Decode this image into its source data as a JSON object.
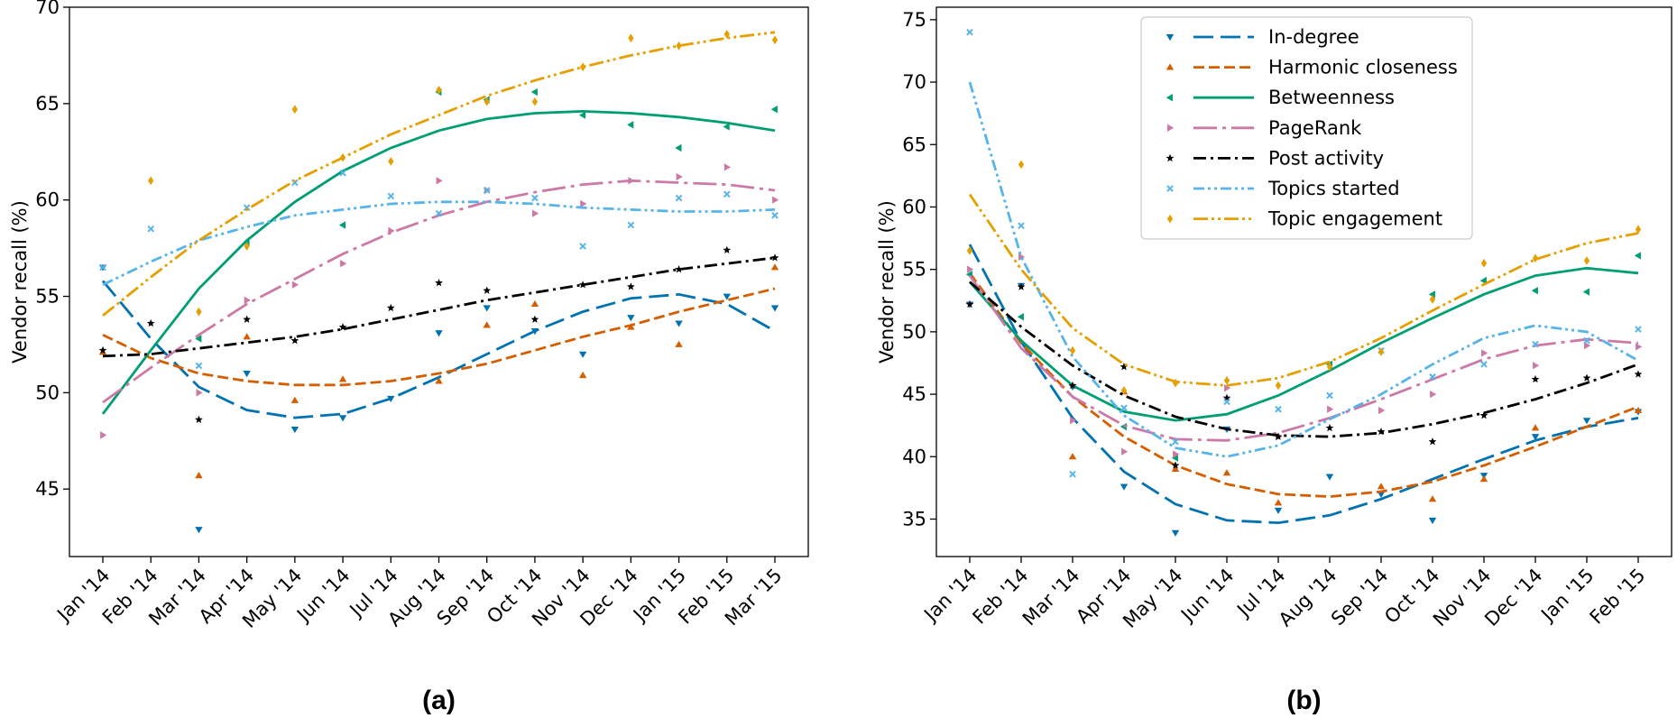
{
  "chart_data": [
    {
      "type": "line",
      "panel_label": "(a)",
      "ylabel": "Vendor recall (%)",
      "xlabel": "",
      "ylim": [
        41.5,
        70
      ],
      "yticks": [
        45,
        50,
        55,
        60,
        65,
        70
      ],
      "categories": [
        "Jan '14",
        "Feb '14",
        "Mar '14",
        "Apr '14",
        "May '14",
        "Jun '14",
        "Jul '14",
        "Aug '14",
        "Sep '14",
        "Oct '14",
        "Nov '14",
        "Dec '14",
        "Jan '15",
        "Feb '15",
        "Mar '15"
      ],
      "grid": false,
      "legend": "none",
      "series": [
        {
          "name": "In-degree",
          "color": "#0072b2",
          "marker": "triangle-down",
          "dash": "dashed-long",
          "points": [
            56.5,
            null,
            42.9,
            51.0,
            48.1,
            48.7,
            49.7,
            53.1,
            54.4,
            53.2,
            52.0,
            53.9,
            53.6,
            55.0,
            54.4
          ],
          "trend": [
            55.8,
            52.8,
            50.3,
            49.1,
            48.7,
            48.9,
            49.7,
            50.8,
            52.0,
            53.2,
            54.2,
            54.9,
            55.1,
            54.6,
            53.2
          ]
        },
        {
          "name": "Harmonic closeness",
          "color": "#d55e00",
          "marker": "triangle-up",
          "dash": "dashed",
          "points": [
            52.1,
            null,
            45.7,
            52.9,
            49.6,
            50.7,
            null,
            50.6,
            53.5,
            54.6,
            50.9,
            53.4,
            52.5,
            null,
            56.5
          ],
          "trend": [
            53.0,
            51.8,
            51.0,
            50.6,
            50.4,
            50.4,
            50.6,
            51.0,
            51.5,
            52.2,
            52.9,
            53.5,
            54.2,
            54.8,
            55.4
          ]
        },
        {
          "name": "Betweenness",
          "color": "#009e73",
          "marker": "triangle-left",
          "dash": "solid",
          "points": [
            null,
            null,
            52.8,
            57.8,
            null,
            58.7,
            null,
            65.6,
            65.2,
            65.6,
            64.4,
            63.9,
            62.7,
            63.8,
            64.7
          ],
          "trend": [
            48.9,
            52.2,
            55.4,
            57.9,
            59.9,
            61.5,
            62.7,
            63.6,
            64.2,
            64.5,
            64.6,
            64.5,
            64.3,
            64.0,
            63.6
          ]
        },
        {
          "name": "PageRank",
          "color": "#cc79a7",
          "marker": "triangle-right",
          "dash": "dash-dot-long",
          "points": [
            47.8,
            null,
            50.0,
            54.8,
            55.6,
            56.7,
            58.4,
            61.0,
            60.5,
            59.3,
            59.8,
            61.0,
            61.2,
            61.7,
            60.0
          ],
          "trend": [
            49.5,
            51.3,
            53.0,
            54.6,
            55.9,
            57.2,
            58.3,
            59.2,
            59.9,
            60.4,
            60.8,
            61.0,
            60.9,
            60.8,
            60.5
          ]
        },
        {
          "name": "Post activity",
          "color": "#000000",
          "marker": "star",
          "dash": "dash-dot",
          "points": [
            52.2,
            53.6,
            48.6,
            53.8,
            52.7,
            53.4,
            54.4,
            55.7,
            55.3,
            53.8,
            55.6,
            55.5,
            56.4,
            57.4,
            57.0
          ],
          "trend": [
            51.9,
            52.0,
            52.3,
            52.6,
            52.9,
            53.3,
            53.8,
            54.3,
            54.8,
            55.2,
            55.6,
            56.0,
            56.4,
            56.7,
            57.0
          ]
        },
        {
          "name": "Topics started",
          "color": "#56b4e9",
          "marker": "x-small",
          "dash": "dash-dot-dot",
          "points": [
            56.5,
            58.5,
            51.4,
            59.6,
            60.9,
            61.4,
            60.2,
            59.3,
            60.5,
            60.1,
            57.6,
            58.7,
            60.1,
            60.3,
            59.2
          ],
          "trend": [
            55.6,
            56.8,
            57.9,
            58.6,
            59.2,
            59.5,
            59.8,
            59.9,
            59.9,
            59.8,
            59.6,
            59.5,
            59.4,
            59.4,
            59.5
          ]
        },
        {
          "name": "Topic engagement",
          "color": "#e69f00",
          "marker": "diamond",
          "dash": "dash-dot-dot-long",
          "points": [
            null,
            61.0,
            54.2,
            57.6,
            64.7,
            62.2,
            62.0,
            65.7,
            65.1,
            65.1,
            66.9,
            68.4,
            68.0,
            68.6,
            68.3
          ],
          "trend": [
            54.0,
            56.0,
            57.9,
            59.5,
            61.0,
            62.2,
            63.4,
            64.4,
            65.4,
            66.2,
            66.9,
            67.5,
            68.0,
            68.4,
            68.7
          ]
        }
      ]
    },
    {
      "type": "line",
      "panel_label": "(b)",
      "ylabel": "Vendor recall (%)",
      "xlabel": "",
      "ylim": [
        32,
        76
      ],
      "yticks": [
        35,
        40,
        45,
        50,
        55,
        60,
        65,
        70,
        75
      ],
      "categories": [
        "Jan '14",
        "Feb '14",
        "Mar '14",
        "Apr '14",
        "May '14",
        "Jun '14",
        "Jul '14",
        "Aug '14",
        "Sep '14",
        "Oct '14",
        "Nov '14",
        "Dec '14",
        "Jan '15",
        "Feb '15"
      ],
      "grid": false,
      "legend": "top-center",
      "series": [
        {
          "name": "In-degree",
          "color": "#0072b2",
          "marker": "triangle-down",
          "dash": "dashed-long",
          "points": [
            52.2,
            53.7,
            45.6,
            37.6,
            33.9,
            42.2,
            35.7,
            38.4,
            37.0,
            34.9,
            38.5,
            41.6,
            42.9,
            43.6
          ],
          "trend": [
            57.0,
            49.2,
            43.1,
            38.8,
            36.2,
            34.9,
            34.7,
            35.3,
            36.6,
            38.2,
            39.8,
            41.3,
            42.4,
            43.1
          ]
        },
        {
          "name": "Harmonic closeness",
          "color": "#d55e00",
          "marker": "triangle-up",
          "dash": "dashed",
          "points": [
            null,
            null,
            40.0,
            45.2,
            39.0,
            38.7,
            36.3,
            null,
            37.6,
            36.6,
            38.2,
            42.3,
            null,
            43.7
          ],
          "trend": [
            54.7,
            49.1,
            44.8,
            41.6,
            39.3,
            37.8,
            37.0,
            36.8,
            37.2,
            38.0,
            39.3,
            40.8,
            42.4,
            44.0
          ]
        },
        {
          "name": "Betweenness",
          "color": "#009e73",
          "marker": "triangle-left",
          "dash": "solid",
          "points": [
            54.6,
            51.2,
            null,
            42.4,
            39.9,
            null,
            null,
            47.4,
            null,
            53.0,
            54.1,
            53.3,
            53.2,
            56.1
          ],
          "trend": [
            54.0,
            49.3,
            45.7,
            43.6,
            42.9,
            43.4,
            44.9,
            46.9,
            49.1,
            51.1,
            53.0,
            54.5,
            55.1,
            54.7
          ]
        },
        {
          "name": "PageRank",
          "color": "#cc79a7",
          "marker": "triangle-right",
          "dash": "dash-dot-long",
          "points": [
            55.0,
            56.0,
            42.9,
            40.4,
            40.2,
            45.5,
            41.6,
            43.8,
            43.7,
            45.0,
            48.3,
            47.3,
            48.9,
            48.8
          ],
          "trend": [
            54.5,
            48.7,
            44.8,
            42.5,
            41.4,
            41.3,
            41.9,
            43.1,
            44.6,
            46.2,
            47.8,
            48.9,
            49.4,
            49.1
          ]
        },
        {
          "name": "Post activity",
          "color": "#000000",
          "marker": "star",
          "dash": "dash-dot",
          "points": [
            52.2,
            53.6,
            45.7,
            47.2,
            39.3,
            44.7,
            41.6,
            42.3,
            42.0,
            41.2,
            43.3,
            46.2,
            46.3,
            46.6
          ],
          "trend": [
            54.0,
            50.4,
            47.3,
            44.9,
            43.2,
            42.2,
            41.7,
            41.6,
            41.9,
            42.6,
            43.5,
            44.6,
            45.9,
            47.4
          ]
        },
        {
          "name": "Topics started",
          "color": "#56b4e9",
          "marker": "x-small",
          "dash": "dash-dot-dot",
          "points": [
            74.0,
            58.5,
            38.6,
            43.9,
            41.2,
            44.4,
            43.8,
            44.9,
            48.5,
            46.4,
            47.4,
            49.0,
            49.3,
            50.2
          ],
          "trend": [
            70.0,
            56.0,
            48.0,
            43.3,
            40.7,
            40.0,
            40.9,
            43.0,
            45.0,
            47.4,
            49.5,
            50.5,
            50.0,
            47.7
          ]
        },
        {
          "name": "Topic engagement",
          "color": "#e69f00",
          "marker": "diamond",
          "dash": "dash-dot-dot-long",
          "points": [
            56.5,
            63.4,
            48.5,
            45.3,
            45.9,
            46.1,
            45.7,
            47.2,
            48.4,
            52.6,
            55.5,
            55.9,
            55.7,
            58.2
          ],
          "trend": [
            61.0,
            55.0,
            50.3,
            47.4,
            46.0,
            45.7,
            46.3,
            47.6,
            49.5,
            51.7,
            53.8,
            55.8,
            57.1,
            57.9
          ]
        }
      ]
    }
  ]
}
